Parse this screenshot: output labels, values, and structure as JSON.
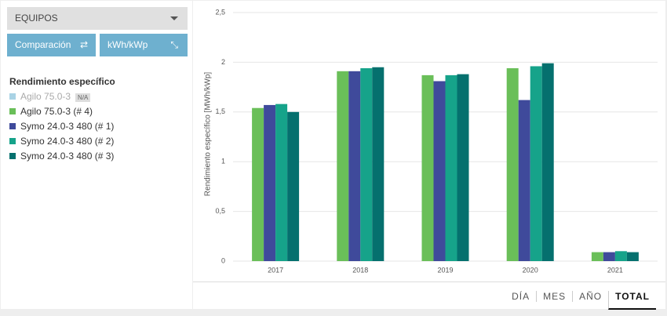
{
  "ui": {
    "dropdown": "EQUIPOS",
    "buttons": [
      "Comparación",
      "kWh/kWp"
    ],
    "legend_title": "Rendimiento específico",
    "na_badge": "N/A",
    "periods": [
      "DÍA",
      "MES",
      "AÑO",
      "TOTAL"
    ],
    "active_period": 3
  },
  "chart_data": {
    "type": "bar",
    "y_label": "Rendimiento específico [MWh/kWp]",
    "categories": [
      "2017",
      "2018",
      "2019",
      "2020",
      "2021"
    ],
    "series": [
      {
        "name": "Agilo 75.0-3",
        "color": "#a9d3e5",
        "values": [
          null,
          null,
          null,
          null,
          null
        ]
      },
      {
        "name": "Agilo 75.0-3 (# 4)",
        "color": "#6abf59",
        "values": [
          1.54,
          1.91,
          1.87,
          1.94,
          0.09
        ]
      },
      {
        "name": "Symo 24.0-3 480 (# 1)",
        "color": "#3f4a9b",
        "values": [
          1.57,
          1.91,
          1.81,
          1.62,
          0.09
        ]
      },
      {
        "name": "Symo 24.0-3 480 (# 2)",
        "color": "#16a38a",
        "values": [
          1.58,
          1.94,
          1.87,
          1.96,
          0.1
        ]
      },
      {
        "name": "Symo 24.0-3 480 (# 3)",
        "color": "#05706e",
        "values": [
          1.5,
          1.95,
          1.88,
          1.99,
          0.09
        ]
      }
    ],
    "ylim": [
      0,
      2.5
    ],
    "yticks": [
      0,
      {
        "value": 0.5,
        "label": "0,5"
      },
      1,
      {
        "value": 1.5,
        "label": "1,5"
      },
      2,
      {
        "value": 2.5,
        "label": "2,5"
      }
    ],
    "grid": true
  }
}
